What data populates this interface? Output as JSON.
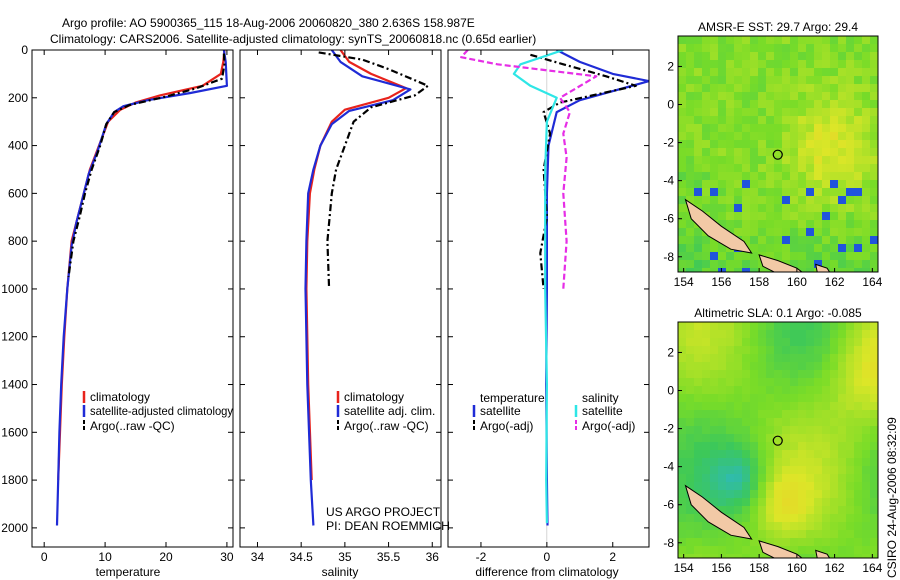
{
  "header": {
    "line1": "Argo profile: AO 5900365_115 18-Aug-2006 20060820_380 2.636S 158.987E",
    "line2": "Climatology: CARS2006. Satellite-adjusted climatology: synTS_20060818.nc (0.65d earlier)"
  },
  "colors": {
    "climatology": "#e8231c",
    "satellite": "#1f2bd6",
    "argo": "#000000",
    "sal_satellite": "#2ee6e6",
    "sal_argo": "#e62ee6"
  },
  "chart_data": [
    {
      "type": "line",
      "id": "temperature",
      "xlabel": "temperature",
      "xlim": [
        -2,
        31
      ],
      "ylim": [
        2080,
        0
      ],
      "xticks": [
        "0",
        "10",
        "20",
        "30"
      ],
      "xtick_values": [
        0,
        10,
        20,
        30
      ],
      "yticks": [
        "0",
        "200",
        "400",
        "600",
        "800",
        "1000",
        "1200",
        "1400",
        "1600",
        "1800",
        "2000"
      ],
      "ytick_values": [
        0,
        200,
        400,
        600,
        800,
        1000,
        1200,
        1400,
        1600,
        1800,
        2000
      ],
      "legend": [
        "climatology",
        "satellite-adjusted climatology",
        "Argo(..raw -QC)"
      ],
      "series": [
        {
          "name": "climatology",
          "style": "solid",
          "color": "#e8231c",
          "points": [
            [
              29.6,
              0
            ],
            [
              29.4,
              50
            ],
            [
              29.0,
              100
            ],
            [
              26,
              150
            ],
            [
              19,
              190
            ],
            [
              15,
              220
            ],
            [
              12.5,
              250
            ],
            [
              10.5,
              300
            ],
            [
              9,
              400
            ],
            [
              7.5,
              500
            ],
            [
              6.5,
              600
            ],
            [
              5.5,
              700
            ],
            [
              4.5,
              800
            ],
            [
              3.8,
              1000
            ],
            [
              3.3,
              1200
            ],
            [
              2.9,
              1400
            ],
            [
              2.6,
              1600
            ],
            [
              2.3,
              1800
            ]
          ]
        },
        {
          "name": "satellite",
          "style": "solid",
          "color": "#1f2bd6",
          "points": [
            [
              29.5,
              0
            ],
            [
              29.8,
              50
            ],
            [
              30.0,
              150
            ],
            [
              24,
              180
            ],
            [
              17,
              210
            ],
            [
              13,
              235
            ],
            [
              11.5,
              260
            ],
            [
              10.2,
              310
            ],
            [
              8.8,
              420
            ],
            [
              7.3,
              520
            ],
            [
              6.3,
              620
            ],
            [
              5.3,
              720
            ],
            [
              4.5,
              820
            ],
            [
              3.8,
              1000
            ],
            [
              3.2,
              1200
            ],
            [
              2.8,
              1400
            ],
            [
              2.5,
              1600
            ],
            [
              2.3,
              1800
            ],
            [
              2.1,
              1990
            ]
          ]
        },
        {
          "name": "Argo(..raw -QC)",
          "style": "dashdot",
          "color": "#000000",
          "points": [
            [
              29.5,
              15
            ],
            [
              29.6,
              60
            ],
            [
              29.2,
              120
            ],
            [
              25,
              160
            ],
            [
              20,
              195
            ],
            [
              14,
              230
            ],
            [
              11.5,
              260
            ],
            [
              10.2,
              310
            ],
            [
              9.2,
              400
            ],
            [
              7.8,
              500
            ],
            [
              6.7,
              600
            ],
            [
              5.8,
              700
            ],
            [
              4.8,
              800
            ],
            [
              4.0,
              950
            ]
          ]
        }
      ]
    },
    {
      "type": "line",
      "id": "salinity",
      "xlabel": "salinity",
      "xlim": [
        33.8,
        36.1
      ],
      "ylim": [
        2080,
        0
      ],
      "xticks": [
        "34",
        "34.5",
        "35",
        "35.5",
        "36"
      ],
      "xtick_values": [
        34,
        34.5,
        35,
        35.5,
        36
      ],
      "legend": [
        "climatology",
        "satellite adj. clim.",
        "Argo(..raw -QC)"
      ],
      "note": [
        "US ARGO PROJECT",
        "PI: DEAN ROEMMICH"
      ],
      "series": [
        {
          "name": "climatology",
          "style": "solid",
          "color": "#e8231c",
          "points": [
            [
              34.95,
              0
            ],
            [
              35.05,
              50
            ],
            [
              35.3,
              100
            ],
            [
              35.7,
              160
            ],
            [
              35.5,
              200
            ],
            [
              35.0,
              250
            ],
            [
              34.85,
              300
            ],
            [
              34.72,
              400
            ],
            [
              34.65,
              500
            ],
            [
              34.6,
              600
            ],
            [
              34.57,
              800
            ],
            [
              34.56,
              1000
            ],
            [
              34.58,
              1400
            ],
            [
              34.62,
              1800
            ]
          ]
        },
        {
          "name": "satellite",
          "style": "solid",
          "color": "#1f2bd6",
          "points": [
            [
              34.85,
              0
            ],
            [
              34.95,
              50
            ],
            [
              35.2,
              110
            ],
            [
              35.75,
              165
            ],
            [
              35.55,
              210
            ],
            [
              35.05,
              255
            ],
            [
              34.85,
              310
            ],
            [
              34.72,
              400
            ],
            [
              34.64,
              500
            ],
            [
              34.58,
              600
            ],
            [
              34.56,
              800
            ],
            [
              34.55,
              1000
            ],
            [
              34.57,
              1400
            ],
            [
              34.61,
              1800
            ],
            [
              34.64,
              1990
            ]
          ]
        },
        {
          "name": "Argo(..raw -QC)",
          "style": "dashdot",
          "color": "#000000",
          "points": [
            [
              34.7,
              10
            ],
            [
              35.2,
              40
            ],
            [
              35.5,
              80
            ],
            [
              35.95,
              150
            ],
            [
              35.8,
              190
            ],
            [
              35.3,
              240
            ],
            [
              35.1,
              300
            ],
            [
              35.0,
              400
            ],
            [
              34.9,
              500
            ],
            [
              34.85,
              600
            ],
            [
              34.8,
              800
            ],
            [
              34.82,
              1000
            ]
          ]
        }
      ]
    },
    {
      "type": "line",
      "id": "difference",
      "xlabel": "difference from climatology",
      "xlim": [
        -3,
        3.1
      ],
      "ylim": [
        2080,
        0
      ],
      "xticks": [
        "-2",
        "0",
        "2"
      ],
      "xtick_values": [
        -2,
        0,
        2
      ],
      "legend_left_title": "temperature",
      "legend_left": [
        "satellite",
        "Argo(-adj)"
      ],
      "legend_right_title": "salinity",
      "legend_right": [
        "satellite",
        "Argo(-adj)"
      ],
      "series": [
        {
          "name": "temp satellite",
          "style": "solid",
          "color": "#1f2bd6",
          "points": [
            [
              0.3,
              0
            ],
            [
              1.0,
              50
            ],
            [
              2.0,
              100
            ],
            [
              3.1,
              130
            ],
            [
              1.0,
              210
            ],
            [
              0.3,
              260
            ],
            [
              0.05,
              400
            ],
            [
              0.0,
              600
            ],
            [
              0.0,
              1000
            ],
            [
              -0.02,
              1400
            ],
            [
              0.0,
              1800
            ],
            [
              0.02,
              1990
            ]
          ]
        },
        {
          "name": "temp Argo(-adj)",
          "style": "dashdot",
          "color": "#000000",
          "points": [
            [
              -0.5,
              20
            ],
            [
              0.5,
              60
            ],
            [
              1.8,
              110
            ],
            [
              2.7,
              150
            ],
            [
              0.4,
              220
            ],
            [
              -0.1,
              260
            ],
            [
              0.1,
              350
            ],
            [
              -0.1,
              500
            ],
            [
              0.0,
              700
            ],
            [
              -0.2,
              850
            ],
            [
              -0.1,
              1000
            ]
          ]
        },
        {
          "name": "sal satellite",
          "style": "solid",
          "color": "#2ee6e6",
          "points": [
            [
              0.5,
              0
            ],
            [
              -0.8,
              60
            ],
            [
              -1.0,
              100
            ],
            [
              -0.5,
              150
            ],
            [
              0.3,
              200
            ],
            [
              0.0,
              300
            ],
            [
              -0.05,
              500
            ],
            [
              -0.05,
              800
            ],
            [
              -0.05,
              1000
            ],
            [
              0.0,
              1400
            ],
            [
              -0.02,
              1800
            ],
            [
              0.0,
              1980
            ]
          ]
        },
        {
          "name": "sal Argo(-adj)",
          "style": "dashed",
          "color": "#e62ee6",
          "points": [
            [
              -2.4,
              0
            ],
            [
              -2.6,
              30
            ],
            [
              -1.5,
              60
            ],
            [
              1.5,
              110
            ],
            [
              0.4,
              200
            ],
            [
              0.7,
              260
            ],
            [
              0.5,
              350
            ],
            [
              0.6,
              450
            ],
            [
              0.5,
              600
            ],
            [
              0.6,
              800
            ],
            [
              0.5,
              1000
            ]
          ]
        }
      ]
    },
    {
      "type": "heatmap",
      "id": "sst",
      "title": "AMSR-E SST: 29.7 Argo: 29.4",
      "xlim": [
        153.7,
        164.3
      ],
      "ylim": [
        -8.8,
        3.6
      ],
      "xticks": [
        "154",
        "156",
        "158",
        "160",
        "162",
        "164"
      ],
      "xtick_values": [
        154,
        156,
        158,
        160,
        162,
        164
      ],
      "yticks": [
        "2",
        "0",
        "-2",
        "-4",
        "-6",
        "-8"
      ],
      "ytick_values": [
        2,
        0,
        -2,
        -4,
        -6,
        -8
      ],
      "marker": {
        "lon": 158.987,
        "lat": -2.636
      }
    },
    {
      "type": "heatmap",
      "id": "sla",
      "title": "Altimetric SLA: 0.1 Argo: -0.085",
      "xlim": [
        153.7,
        164.3
      ],
      "ylim": [
        -8.8,
        3.6
      ],
      "xticks": [
        "154",
        "156",
        "158",
        "160",
        "162",
        "164"
      ],
      "xtick_values": [
        154,
        156,
        158,
        160,
        162,
        164
      ],
      "yticks": [
        "2",
        "0",
        "-2",
        "-4",
        "-6",
        "-8"
      ],
      "ytick_values": [
        2,
        0,
        -2,
        -4,
        -6,
        -8
      ],
      "marker": {
        "lon": 158.987,
        "lat": -2.636
      }
    }
  ],
  "footer_credit": "CSIRO 24-Aug-2006 08:32:09"
}
